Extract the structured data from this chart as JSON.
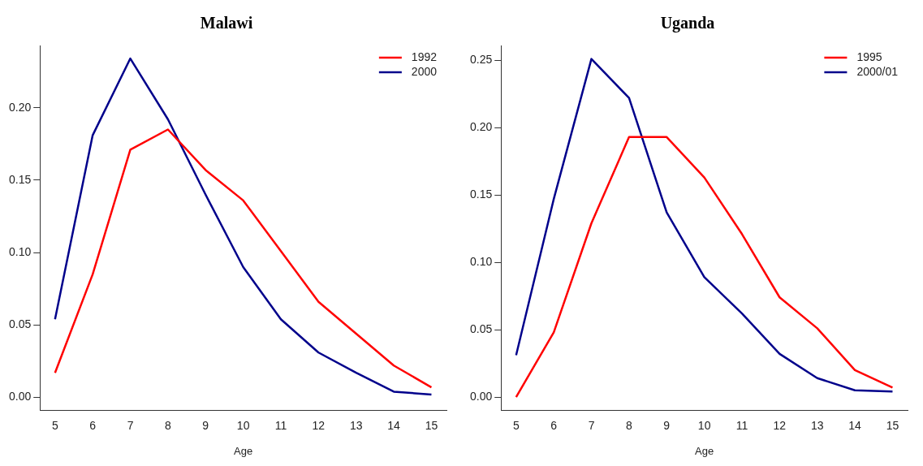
{
  "chart_data": [
    {
      "type": "line",
      "title": "Malawi",
      "xlabel": "Age",
      "x": [
        5,
        6,
        7,
        8,
        9,
        10,
        11,
        12,
        13,
        14,
        15
      ],
      "xlim": [
        4.6,
        15.4
      ],
      "xticks": [
        5,
        6,
        7,
        8,
        9,
        10,
        11,
        12,
        13,
        14,
        15
      ],
      "ylim": [
        -0.009,
        0.243
      ],
      "yticks": [
        {
          "value": 0,
          "label": "0.00"
        },
        {
          "value": 0.05,
          "label": "0.05"
        },
        {
          "value": 0.1,
          "label": "0.10"
        },
        {
          "value": 0.15,
          "label": "0.15"
        },
        {
          "value": 0.2,
          "label": "0.20"
        }
      ],
      "grid": false,
      "legend": "top right",
      "marker": "none",
      "line_style": "solid",
      "series": [
        {
          "name": "1992",
          "color": "#ff0000",
          "values": [
            0.017,
            0.085,
            0.171,
            0.185,
            0.157,
            0.136,
            0.101,
            0.066,
            0.044,
            0.022,
            0.007
          ]
        },
        {
          "name": "2000",
          "color": "#00008b",
          "values": [
            0.054,
            0.181,
            0.234,
            0.192,
            0.14,
            0.09,
            0.054,
            0.031,
            0.017,
            0.004,
            0.002
          ]
        }
      ]
    },
    {
      "type": "line",
      "title": "Uganda",
      "xlabel": "Age",
      "x": [
        5,
        6,
        7,
        8,
        9,
        10,
        11,
        12,
        13,
        14,
        15
      ],
      "xlim": [
        4.6,
        15.4
      ],
      "xticks": [
        5,
        6,
        7,
        8,
        9,
        10,
        11,
        12,
        13,
        14,
        15
      ],
      "ylim": [
        -0.01,
        0.261
      ],
      "yticks": [
        {
          "value": 0,
          "label": "0.00"
        },
        {
          "value": 0.05,
          "label": "0.05"
        },
        {
          "value": 0.1,
          "label": "0.10"
        },
        {
          "value": 0.15,
          "label": "0.15"
        },
        {
          "value": 0.2,
          "label": "0.20"
        },
        {
          "value": 0.25,
          "label": "0.25"
        }
      ],
      "grid": false,
      "legend": "top right",
      "marker": "none",
      "line_style": "solid",
      "series": [
        {
          "name": "1995",
          "color": "#ff0000",
          "values": [
            0,
            0.048,
            0.129,
            0.193,
            0.193,
            0.163,
            0.121,
            0.074,
            0.051,
            0.02,
            0.007
          ]
        },
        {
          "name": "2000/01",
          "color": "#00008b",
          "values": [
            0.031,
            0.147,
            0.251,
            0.222,
            0.137,
            0.089,
            0.062,
            0.032,
            0.014,
            0.005,
            0.004
          ]
        }
      ]
    }
  ]
}
